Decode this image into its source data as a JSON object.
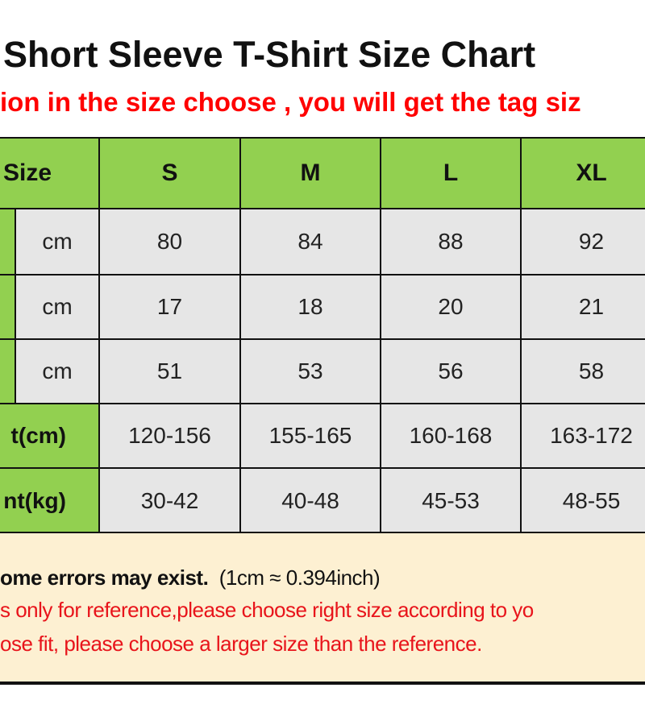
{
  "title": "Short Sleeve T-Shirt Size Chart",
  "subtitle": "ion in the size choose , you will get the tag siz",
  "colors": {
    "header_green": "#92d050",
    "cell_gray": "#e6e6e6",
    "note_bg": "#fdf0d2",
    "warning_red": "#e8141b"
  },
  "table": {
    "header_label": "Size",
    "sizes": [
      "S",
      "M",
      "L",
      "XL"
    ],
    "measure_rows": [
      {
        "unit": "cm",
        "values": [
          "80",
          "84",
          "88",
          "92"
        ]
      },
      {
        "unit": "cm",
        "values": [
          "17",
          "18",
          "20",
          "21"
        ]
      },
      {
        "unit": "cm",
        "values": [
          "51",
          "53",
          "56",
          "58"
        ]
      }
    ],
    "range_rows": [
      {
        "label": "t(cm)",
        "values": [
          "120-156",
          "155-165",
          "160-168",
          "163-172"
        ]
      },
      {
        "label": "nt(kg)",
        "values": [
          "30-42",
          "40-48",
          "45-53",
          "48-55"
        ]
      }
    ]
  },
  "notes": {
    "line1_bold": "ome errors may exist.",
    "line1_rest": "(1cm ≈ 0.394inch)",
    "line2": "s only for reference,please choose right size according to yo",
    "line3": "ose fit, please choose a larger size than the reference."
  }
}
